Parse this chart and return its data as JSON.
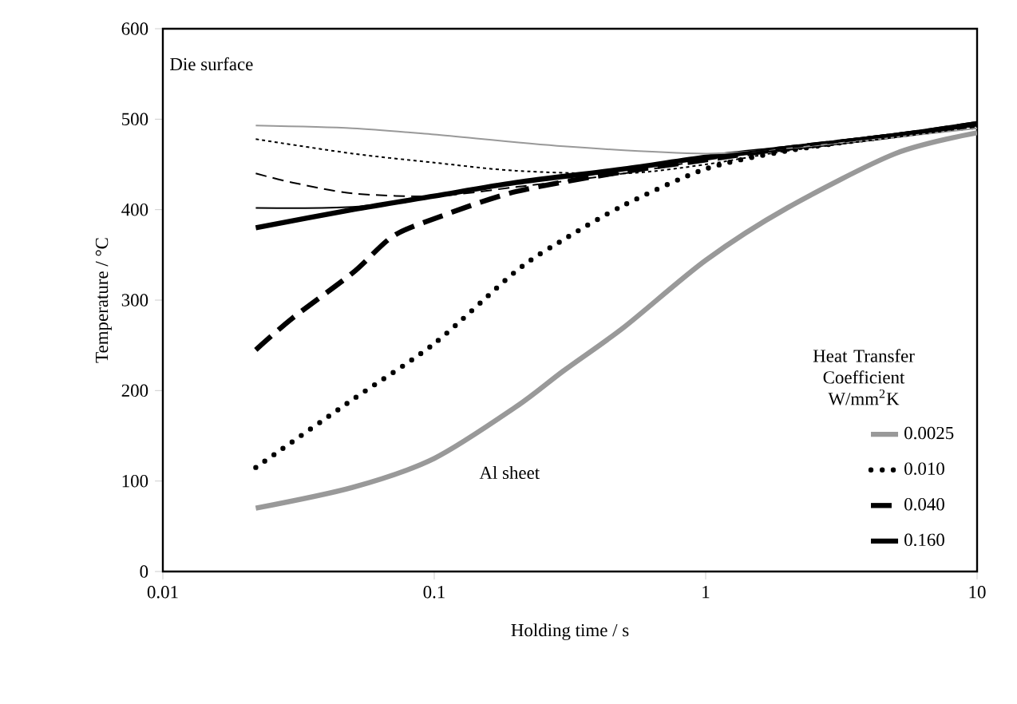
{
  "chart_data": {
    "type": "line",
    "xlabel": "Holding time / s",
    "ylabel": "Temperature / °C",
    "log": "x",
    "xlim": [
      0.01,
      10
    ],
    "ylim": [
      0,
      600
    ],
    "xticks": [
      0.01,
      0.1,
      1,
      10
    ],
    "yticks": [
      0,
      100,
      200,
      300,
      400,
      500,
      600
    ],
    "grid": false,
    "legend": "bottom right",
    "legend_title": "Heat Transfer Coefficient W/mm$^{2}$K",
    "marker": "none",
    "annotations": [
      "Die surface",
      "Al sheet"
    ],
    "series": [
      {
        "name": "0.0025",
        "color": "#999999",
        "line_style": "solid",
        "x": [
          0.022,
          0.05,
          0.1,
          0.2,
          0.3,
          0.5,
          1,
          2,
          5,
          10
        ],
        "values": [
          70,
          93,
          125,
          182,
          222,
          270,
          344,
          402,
          462,
          485
        ]
      },
      {
        "name": "0.010",
        "color": "#000000",
        "line_style": "dotted",
        "x": [
          0.022,
          0.05,
          0.1,
          0.2,
          0.3,
          0.5,
          1,
          2,
          5,
          10
        ],
        "values": [
          115,
          190,
          252,
          332,
          367,
          405,
          445,
          465,
          482,
          492
        ]
      },
      {
        "name": "0.040",
        "color": "#000000",
        "line_style": "dashed",
        "x": [
          0.022,
          0.03,
          0.05,
          0.07,
          0.1,
          0.2,
          0.5,
          1,
          2,
          5,
          10
        ],
        "values": [
          245,
          280,
          330,
          370,
          390,
          420,
          442,
          455,
          468,
          482,
          495
        ]
      },
      {
        "name": "0.160",
        "color": "#000000",
        "line_style": "solid",
        "x": [
          0.022,
          0.05,
          0.1,
          0.2,
          0.5,
          1,
          2,
          5,
          10
        ],
        "values": [
          380,
          400,
          415,
          430,
          445,
          458,
          468,
          482,
          495
        ]
      },
      {
        "color": "#999999",
        "line_style": "solid",
        "x": [
          0.022,
          0.05,
          0.1,
          0.3,
          1,
          2,
          5,
          10
        ],
        "values": [
          493,
          490,
          483,
          470,
          462,
          468,
          480,
          490
        ]
      },
      {
        "color": "#000000",
        "line_style": "dotted",
        "x": [
          0.022,
          0.05,
          0.1,
          0.2,
          0.5,
          1,
          2,
          5,
          10
        ],
        "values": [
          478,
          462,
          452,
          443,
          440,
          450,
          465,
          480,
          492
        ]
      },
      {
        "color": "#000000",
        "line_style": "dashed",
        "x": [
          0.022,
          0.03,
          0.05,
          0.1,
          0.2,
          0.5,
          1,
          2,
          5,
          10
        ],
        "values": [
          440,
          430,
          418,
          415,
          425,
          440,
          455,
          468,
          482,
          495
        ]
      },
      {
        "color": "#000000",
        "line_style": "solid",
        "x": [
          0.022,
          0.05,
          0.1,
          0.2,
          0.5,
          1,
          10
        ],
        "values": [
          402,
          403,
          415,
          430,
          445,
          458,
          495
        ]
      }
    ]
  }
}
